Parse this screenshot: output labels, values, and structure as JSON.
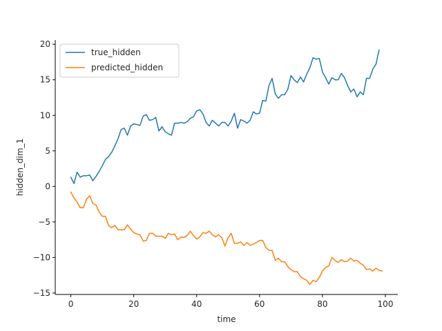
{
  "chart_data": {
    "type": "line",
    "title": "",
    "xlabel": "time",
    "ylabel": "hidden_dim_1",
    "xlim": [
      -4.95,
      103.95
    ],
    "ylim": [
      -15.2,
      20.6
    ],
    "xticks": [
      0,
      20,
      40,
      60,
      80,
      100
    ],
    "yticks": [
      -15,
      -10,
      -5,
      0,
      5,
      10,
      15,
      20
    ],
    "xtick_labels": [
      "0",
      "20",
      "40",
      "60",
      "80",
      "100"
    ],
    "ytick_labels": [
      "−15",
      "−10",
      "−5",
      "0",
      "5",
      "10",
      "15",
      "20"
    ],
    "grid": false,
    "legend": {
      "position": "top-left"
    },
    "x": [
      0,
      1,
      2,
      3,
      4,
      5,
      6,
      7,
      8,
      9,
      10,
      11,
      12,
      13,
      14,
      15,
      16,
      17,
      18,
      19,
      20,
      21,
      22,
      23,
      24,
      25,
      26,
      27,
      28,
      29,
      30,
      31,
      32,
      33,
      34,
      35,
      36,
      37,
      38,
      39,
      40,
      41,
      42,
      43,
      44,
      45,
      46,
      47,
      48,
      49,
      50,
      51,
      52,
      53,
      54,
      55,
      56,
      57,
      58,
      59,
      60,
      61,
      62,
      63,
      64,
      65,
      66,
      67,
      68,
      69,
      70,
      71,
      72,
      73,
      74,
      75,
      76,
      77,
      78,
      79,
      80,
      81,
      82,
      83,
      84,
      85,
      86,
      87,
      88,
      89,
      90,
      91,
      92,
      93,
      94,
      95,
      96,
      97,
      98,
      99
    ],
    "series": [
      {
        "name": "true_hidden",
        "color": "#1f77b4",
        "values": [
          1.3,
          0.4,
          2.0,
          1.3,
          1.5,
          1.5,
          1.6,
          0.8,
          1.4,
          2.1,
          2.9,
          3.8,
          4.2,
          4.8,
          5.7,
          6.7,
          8.0,
          8.2,
          7.2,
          8.5,
          8.8,
          8.7,
          8.6,
          9.9,
          10.1,
          9.3,
          9.4,
          9.7,
          7.8,
          8.4,
          7.7,
          7.4,
          7.2,
          8.9,
          8.9,
          9.0,
          8.9,
          9.1,
          9.6,
          9.8,
          10.6,
          10.8,
          10.2,
          9.0,
          8.5,
          9.3,
          8.9,
          8.5,
          9.0,
          9.0,
          8.5,
          9.2,
          10.3,
          8.2,
          9.4,
          9.2,
          8.9,
          9.3,
          10.5,
          10.2,
          10.3,
          12.1,
          12.0,
          14.2,
          15.2,
          13.0,
          12.4,
          12.9,
          12.9,
          13.7,
          15.6,
          15.0,
          14.6,
          15.4,
          14.7,
          15.8,
          16.7,
          18.1,
          17.9,
          18.0,
          16.1,
          15.3,
          14.4,
          15.3,
          15.0,
          15.0,
          15.9,
          15.3,
          14.2,
          13.3,
          13.7,
          12.6,
          13.3,
          12.9,
          15.2,
          15.2,
          16.5,
          17.2,
          19.2,
          null
        ]
      },
      {
        "name": "predicted_hidden",
        "color": "#ff7f0e",
        "values": [
          -0.8,
          -1.6,
          -2.2,
          -3.0,
          -3.0,
          -1.8,
          -1.3,
          -2.4,
          -2.6,
          -3.6,
          -4.2,
          -4.2,
          -5.5,
          -5.8,
          -5.5,
          -6.1,
          -6.1,
          -6.1,
          -5.4,
          -6.0,
          -6.5,
          -6.7,
          -6.8,
          -7.7,
          -7.6,
          -6.6,
          -6.6,
          -7.0,
          -7.0,
          -7.0,
          -7.3,
          -6.6,
          -6.8,
          -6.7,
          -7.5,
          -7.1,
          -7.2,
          -6.9,
          -6.3,
          -6.9,
          -7.4,
          -7.1,
          -6.5,
          -6.6,
          -6.3,
          -6.8,
          -7.1,
          -6.8,
          -7.2,
          -8.4,
          -7.2,
          -6.6,
          -8.0,
          -8.0,
          -7.8,
          -8.3,
          -7.9,
          -8.3,
          -8.1,
          -7.9,
          -7.6,
          -7.6,
          -8.6,
          -9.0,
          -9.0,
          -10.4,
          -10.1,
          -10.6,
          -10.6,
          -11.3,
          -11.7,
          -12.0,
          -12.0,
          -12.7,
          -13.0,
          -13.2,
          -13.8,
          -13.2,
          -13.4,
          -12.8,
          -11.9,
          -11.4,
          -11.2,
          -10.0,
          -10.4,
          -10.7,
          -10.3,
          -10.6,
          -10.5,
          -10.1,
          -10.5,
          -10.4,
          -10.8,
          -11.1,
          -11.7,
          -11.6,
          -11.9,
          -11.5,
          -11.8,
          -11.9
        ]
      }
    ]
  }
}
